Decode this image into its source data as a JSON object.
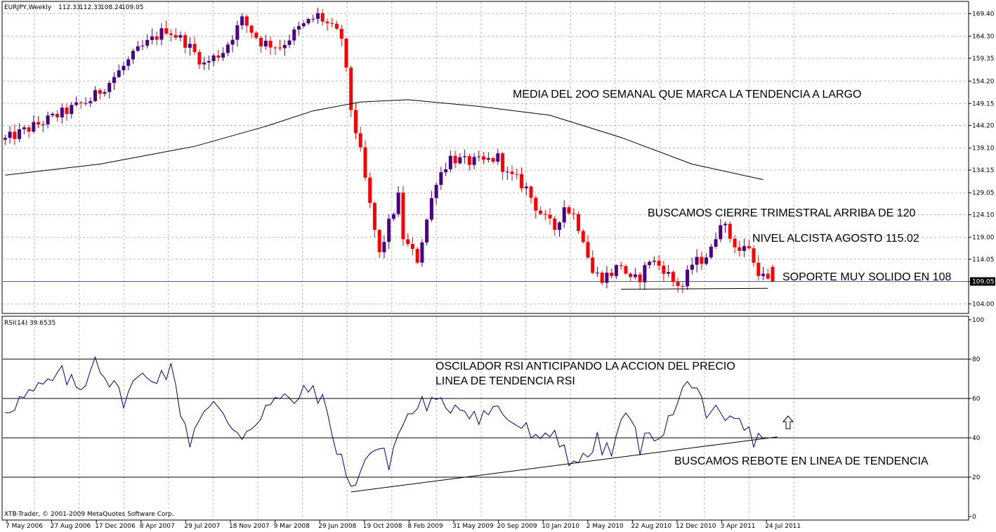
{
  "chart_data": [
    {
      "type": "candlestick",
      "title": "EURJPY,Weekly",
      "ohlc_header": [
        "112.33",
        "112.33",
        "108.24",
        "109.05"
      ],
      "ylim": [
        102.0,
        172.0
      ],
      "ytick_values": [
        104.0,
        109.05,
        114.05,
        119.0,
        124.1,
        129.05,
        134.15,
        139.1,
        144.2,
        149.15,
        154.2,
        159.35,
        164.3,
        169.4
      ],
      "ytick_labels": [
        "104.00",
        "109.05",
        "114.05",
        "119.00",
        "124.10",
        "129.05",
        "134.15",
        "139.10",
        "144.20",
        "149.15",
        "154.20",
        "159.35",
        "164.30",
        "169.40"
      ],
      "current_price_label": "109.05",
      "current_price": 109.05,
      "x_dates": [
        "7 May 2006",
        "27 Aug 2006",
        "17 Dec 2006",
        "8 Apr 2007",
        "29 Jul 2007",
        "18 Nov 2007",
        "9 Mar 2008",
        "29 Jun 2008",
        "19 Oct 2008",
        "8 Feb 2009",
        "31 May 2009",
        "20 Sep 2009",
        "10 Jan 2010",
        "2 May 2010",
        "22 Aug 2010",
        "12 Dec 2010",
        "3 Apr 2011",
        "24 Jul 2011"
      ],
      "bull_color": "#4b0082",
      "bear_color": "#ff0000",
      "price_path": [
        [
          0,
          141
        ],
        [
          10,
          146
        ],
        [
          18,
          150
        ],
        [
          22,
          154
        ],
        [
          28,
          161
        ],
        [
          34,
          166
        ],
        [
          38,
          163
        ],
        [
          42,
          158
        ],
        [
          46,
          161
        ],
        [
          50,
          168
        ],
        [
          54,
          163
        ],
        [
          58,
          162
        ],
        [
          62,
          166
        ],
        [
          66,
          169
        ],
        [
          71,
          164
        ],
        [
          73,
          148
        ],
        [
          75,
          138
        ],
        [
          77,
          126
        ],
        [
          79,
          115
        ],
        [
          81,
          122
        ],
        [
          83,
          128
        ],
        [
          84,
          119
        ],
        [
          85,
          117
        ],
        [
          87,
          114
        ],
        [
          89,
          123
        ],
        [
          91,
          132
        ],
        [
          94,
          137
        ],
        [
          97,
          136
        ],
        [
          101,
          136
        ],
        [
          104,
          137
        ],
        [
          106,
          133
        ],
        [
          108,
          132
        ],
        [
          110,
          130
        ],
        [
          112,
          126
        ],
        [
          114,
          123
        ],
        [
          116,
          121
        ],
        [
          118,
          126
        ],
        [
          120,
          124
        ],
        [
          122,
          119
        ],
        [
          124,
          111
        ],
        [
          126,
          110
        ],
        [
          128,
          111
        ],
        [
          130,
          113
        ],
        [
          132,
          109
        ],
        [
          134,
          110
        ],
        [
          136,
          114
        ],
        [
          139,
          112
        ],
        [
          141,
          109
        ],
        [
          143,
          108
        ],
        [
          145,
          113
        ],
        [
          147,
          114
        ],
        [
          149,
          116
        ],
        [
          151,
          123
        ],
        [
          153,
          119
        ],
        [
          155,
          116
        ],
        [
          157,
          117
        ],
        [
          158,
          113
        ],
        [
          160,
          110
        ],
        [
          161,
          109.05
        ]
      ],
      "ma_200": {
        "x": [
          0,
          20,
          40,
          55,
          65,
          75,
          85,
          100,
          115,
          130,
          145,
          160
        ],
        "y": [
          133.0,
          135.5,
          139.5,
          144.0,
          147.5,
          149.5,
          150.0,
          148.5,
          146.5,
          141.5,
          135.5,
          132.0
        ]
      },
      "support_line": {
        "x": [
          130,
          161
        ],
        "y": [
          107.3,
          107.5
        ]
      },
      "horizontal_level": 109.05,
      "annotations": [
        "MEDIA DEL 2OO SEMANAL QUE MARCA LA TENDENCIA A LARGO",
        "BUSCAMOS CIERRE TRIMESTRAL ARRIBA DE 120",
        "NIVEL ALCISTA AGOSTO 115.02",
        "SOPORTE MUY SOLIDO EN 108"
      ]
    },
    {
      "type": "line",
      "title": "RSI(14) 39.6535",
      "ylim": [
        0,
        100
      ],
      "ytick_values": [
        0,
        20,
        40,
        60,
        80,
        100
      ],
      "ytick_labels": [
        "0",
        "20",
        "40",
        "60",
        "80",
        "100"
      ],
      "levels": [
        20,
        40,
        60,
        80
      ],
      "line_color": "#000080",
      "rsi_path": [
        [
          0,
          55
        ],
        [
          6,
          63
        ],
        [
          12,
          72
        ],
        [
          16,
          64
        ],
        [
          19,
          82
        ],
        [
          22,
          68
        ],
        [
          25,
          60
        ],
        [
          28,
          70
        ],
        [
          32,
          72
        ],
        [
          35,
          74
        ],
        [
          37,
          55
        ],
        [
          39,
          38
        ],
        [
          41,
          52
        ],
        [
          44,
          56
        ],
        [
          47,
          48
        ],
        [
          50,
          42
        ],
        [
          52,
          46
        ],
        [
          55,
          56
        ],
        [
          58,
          59
        ],
        [
          62,
          60
        ],
        [
          65,
          66
        ],
        [
          67,
          58
        ],
        [
          69,
          42
        ],
        [
          71,
          30
        ],
        [
          73,
          12
        ],
        [
          75,
          26
        ],
        [
          78,
          35
        ],
        [
          81,
          28
        ],
        [
          84,
          48
        ],
        [
          88,
          58
        ],
        [
          92,
          56
        ],
        [
          96,
          57
        ],
        [
          100,
          51
        ],
        [
          104,
          55
        ],
        [
          107,
          48
        ],
        [
          110,
          44
        ],
        [
          113,
          36
        ],
        [
          116,
          44
        ],
        [
          119,
          30
        ],
        [
          122,
          28
        ],
        [
          125,
          38
        ],
        [
          128,
          31
        ],
        [
          130,
          50
        ],
        [
          132,
          48
        ],
        [
          134,
          36
        ],
        [
          136,
          40
        ],
        [
          139,
          45
        ],
        [
          141,
          52
        ],
        [
          143,
          63
        ],
        [
          145,
          70
        ],
        [
          147,
          62
        ],
        [
          148,
          45
        ],
        [
          150,
          52
        ],
        [
          152,
          46
        ],
        [
          154,
          50
        ],
        [
          156,
          44
        ],
        [
          158,
          40
        ],
        [
          160,
          39.65
        ]
      ],
      "trend_line": {
        "x": [
          73,
          163
        ],
        "y": [
          12.5,
          40.5
        ]
      },
      "annotations": [
        "OSCILADOR RSI ANTICIPANDO LA ACCION DEL PRECIO",
        "LINEA DE TENDENCIA RSI",
        "BUSCAMOS REBOTE EN LINEA DE TENDENCIA"
      ]
    }
  ],
  "footer_text": "XTB-Trader, © 2001-2009 MetaQuotes Software Corp.",
  "arrow_icon": "up-arrow-icon"
}
